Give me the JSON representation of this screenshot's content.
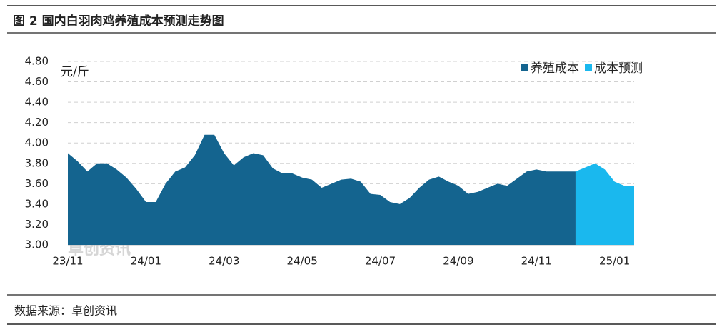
{
  "title": "图 2 国内白羽肉鸡养殖成本预测走势图",
  "source": "数据来源：卓创资讯",
  "chart_data": {
    "type": "area",
    "y_label": "元/斤",
    "watermark": "卓创资讯",
    "categories": [
      "23/11",
      null,
      null,
      null,
      null,
      null,
      null,
      null,
      "24/01",
      null,
      null,
      null,
      null,
      null,
      null,
      null,
      "24/03",
      null,
      null,
      null,
      null,
      null,
      null,
      null,
      "24/05",
      null,
      null,
      null,
      null,
      null,
      null,
      null,
      "24/07",
      null,
      null,
      null,
      null,
      null,
      null,
      null,
      "24/09",
      null,
      null,
      null,
      null,
      null,
      null,
      null,
      "24/11",
      null,
      null,
      null,
      null,
      null,
      null,
      null,
      "25/01",
      null,
      null
    ],
    "series": [
      {
        "name": "养殖成本",
        "color": "#14648f",
        "values": [
          3.9,
          3.82,
          3.72,
          3.8,
          3.8,
          3.74,
          3.66,
          3.55,
          3.42,
          3.42,
          3.6,
          3.72,
          3.76,
          3.88,
          4.08,
          4.08,
          3.9,
          3.78,
          3.86,
          3.9,
          3.88,
          3.75,
          3.7,
          3.7,
          3.66,
          3.64,
          3.56,
          3.6,
          3.64,
          3.65,
          3.62,
          3.5,
          3.49,
          3.42,
          3.4,
          3.46,
          3.56,
          3.64,
          3.67,
          3.62,
          3.58,
          3.5,
          3.52,
          3.56,
          3.6,
          3.58,
          3.65,
          3.72,
          3.74,
          3.72,
          3.72,
          3.72,
          3.72,
          null,
          null,
          null,
          null,
          null,
          null
        ]
      },
      {
        "name": "成本预测",
        "color": "#1ab8ee",
        "values": [
          null,
          null,
          null,
          null,
          null,
          null,
          null,
          null,
          null,
          null,
          null,
          null,
          null,
          null,
          null,
          null,
          null,
          null,
          null,
          null,
          null,
          null,
          null,
          null,
          null,
          null,
          null,
          null,
          null,
          null,
          null,
          null,
          null,
          null,
          null,
          null,
          null,
          null,
          null,
          null,
          null,
          null,
          null,
          null,
          null,
          null,
          null,
          null,
          null,
          null,
          null,
          null,
          3.72,
          3.76,
          3.8,
          3.74,
          3.62,
          3.58,
          3.58
        ]
      }
    ],
    "ylim": [
      3.0,
      4.8
    ],
    "yticks": [
      {
        "value": 3.0,
        "label": "3.00"
      },
      {
        "value": 3.2,
        "label": "3.20"
      },
      {
        "value": 3.4,
        "label": "3.40"
      },
      {
        "value": 3.6,
        "label": "3.60"
      },
      {
        "value": 3.8,
        "label": "3.80"
      },
      {
        "value": 4.0,
        "label": "4.00"
      },
      {
        "value": 4.2,
        "label": "4.20"
      },
      {
        "value": 4.4,
        "label": "4.40"
      },
      {
        "value": 4.6,
        "label": "4.60"
      },
      {
        "value": 4.8,
        "label": "4.80"
      }
    ],
    "grid": true,
    "legend": "top-right"
  }
}
